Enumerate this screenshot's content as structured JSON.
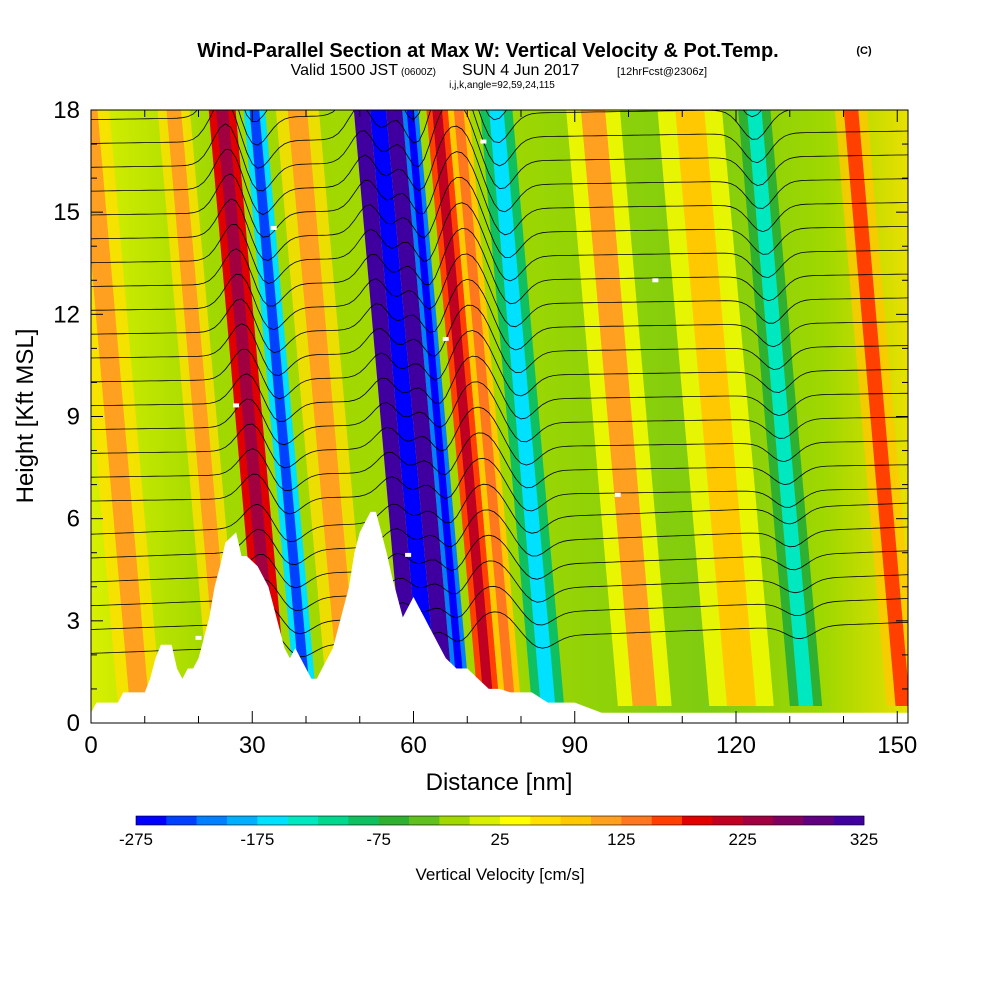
{
  "header": {
    "title": "Wind-Parallel Section at Max W: Vertical Velocity & Pot.Temp.",
    "copyright": "(C)",
    "valid_prefix": "Valid 1500 JST",
    "valid_utc": "(0600Z)",
    "valid_date": "SUN 4 Jun 2017",
    "forecast": "[12hrFcst@2306z]",
    "indices": "i,j,k,angle=92,59,24,115"
  },
  "chart_data": {
    "type": "heatmap",
    "xlabel": "Distance [nm]",
    "ylabel": "Height [Kft MSL]",
    "xlim": [
      0,
      152
    ],
    "ylim": [
      0,
      18
    ],
    "x_ticks": [
      "0",
      "30",
      "60",
      "90",
      "120",
      "150"
    ],
    "y_ticks": [
      "0",
      "3",
      "6",
      "9",
      "12",
      "15",
      "18"
    ],
    "colorbar": {
      "label": "Vertical Velocity [cm/s]",
      "tick_labels": [
        "-275",
        "-175",
        "-75",
        "25",
        "125",
        "225",
        "325"
      ],
      "colors": [
        "#0000ff",
        "#0040ff",
        "#0080ff",
        "#00b0ff",
        "#00e0ff",
        "#00e8c0",
        "#00d890",
        "#10c060",
        "#30b030",
        "#60c020",
        "#a0d800",
        "#d8f000",
        "#ffff00",
        "#ffe000",
        "#ffc800",
        "#ffa020",
        "#ff7820",
        "#ff4000",
        "#e00000",
        "#c00020",
        "#a00040",
        "#800060",
        "#600080",
        "#4000a0"
      ]
    },
    "updrafts": [
      {
        "x": 31,
        "width": 2.5,
        "value": 175
      },
      {
        "x": 57,
        "width": 1.5,
        "value": 300
      },
      {
        "x": 63,
        "width": 1.5,
        "value": 300
      },
      {
        "x": 71,
        "width": 2.0,
        "value": 150
      },
      {
        "x": 75,
        "width": 2.0,
        "value": 75
      }
    ],
    "downdrafts": [
      {
        "x": 37,
        "width": 2.0,
        "value": -175
      },
      {
        "x": 60,
        "width": 1.5,
        "value": -275
      },
      {
        "x": 66,
        "width": 1.5,
        "value": -225
      },
      {
        "x": 82,
        "width": 3.0,
        "value": -100
      },
      {
        "x": 130,
        "width": 3.0,
        "value": -75
      }
    ],
    "terrain": [
      [
        0,
        0.3
      ],
      [
        1,
        0.6
      ],
      [
        5,
        0.6
      ],
      [
        6,
        0.9
      ],
      [
        10,
        0.9
      ],
      [
        11,
        1.3
      ],
      [
        12,
        1.9
      ],
      [
        13,
        2.3
      ],
      [
        15,
        2.3
      ],
      [
        16,
        1.6
      ],
      [
        17,
        1.3
      ],
      [
        18,
        1.6
      ],
      [
        19,
        1.6
      ],
      [
        20,
        1.9
      ],
      [
        21,
        2.5
      ],
      [
        22,
        3.1
      ],
      [
        23,
        4.0
      ],
      [
        24,
        4.6
      ],
      [
        25,
        5.3
      ],
      [
        27,
        5.6
      ],
      [
        28,
        4.9
      ],
      [
        29,
        4.9
      ],
      [
        31,
        4.6
      ],
      [
        33,
        4.0
      ],
      [
        34,
        3.4
      ],
      [
        35,
        2.8
      ],
      [
        36,
        2.2
      ],
      [
        37,
        1.9
      ],
      [
        38,
        2.2
      ],
      [
        39,
        1.9
      ],
      [
        40,
        1.6
      ],
      [
        41,
        1.3
      ],
      [
        42,
        1.3
      ],
      [
        43,
        1.6
      ],
      [
        45,
        2.2
      ],
      [
        46,
        2.8
      ],
      [
        48,
        4.0
      ],
      [
        49,
        5.0
      ],
      [
        50,
        5.6
      ],
      [
        51,
        5.9
      ],
      [
        52,
        6.2
      ],
      [
        53,
        6.2
      ],
      [
        54,
        5.6
      ],
      [
        55,
        5.0
      ],
      [
        56,
        4.3
      ],
      [
        57,
        3.7
      ],
      [
        58,
        3.1
      ],
      [
        59,
        3.4
      ],
      [
        60,
        3.7
      ],
      [
        61,
        3.4
      ],
      [
        62,
        3.1
      ],
      [
        63,
        2.8
      ],
      [
        65,
        2.2
      ],
      [
        66,
        1.9
      ],
      [
        68,
        1.6
      ],
      [
        70,
        1.6
      ],
      [
        72,
        1.3
      ],
      [
        74,
        1.0
      ],
      [
        76,
        1.0
      ],
      [
        78,
        0.9
      ],
      [
        80,
        0.9
      ],
      [
        82,
        0.9
      ],
      [
        85,
        0.6
      ],
      [
        90,
        0.6
      ],
      [
        95,
        0.3
      ],
      [
        152,
        0.3
      ]
    ]
  }
}
